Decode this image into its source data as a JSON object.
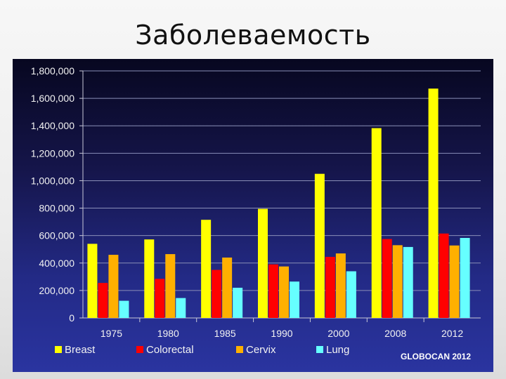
{
  "slide": {
    "title": "Заболеваемость"
  },
  "chart_data": {
    "type": "bar",
    "categories": [
      "1975",
      "1980",
      "1985",
      "1990",
      "2000",
      "2008",
      "2012"
    ],
    "series": [
      {
        "name": "Breast",
        "color": "#ffff00",
        "values": [
          540000,
          572000,
          715000,
          795000,
          1050000,
          1383000,
          1671000
        ]
      },
      {
        "name": "Colorectal",
        "color": "#ff0000",
        "values": [
          255000,
          285000,
          350000,
          390000,
          445000,
          575000,
          615000
        ]
      },
      {
        "name": "Cervix",
        "color": "#ffb000",
        "values": [
          460000,
          465000,
          440000,
          375000,
          470000,
          530000,
          528000
        ]
      },
      {
        "name": "Lung",
        "color": "#66ffff",
        "values": [
          125000,
          145000,
          220000,
          265000,
          340000,
          517000,
          583000
        ]
      }
    ],
    "ylim": [
      0,
      1800000
    ],
    "y_ticks": [
      "0",
      "200,000",
      "400,000",
      "600,000",
      "800,000",
      "1,000,000",
      "1,200,000",
      "1,400,000",
      "1,600,000",
      "1,800,000"
    ],
    "grid": true,
    "legend_position": "bottom",
    "source_note": "GLOBOCAN 2012",
    "background_colors": {
      "top": "#070720",
      "bottom": "#2a34a0"
    }
  }
}
